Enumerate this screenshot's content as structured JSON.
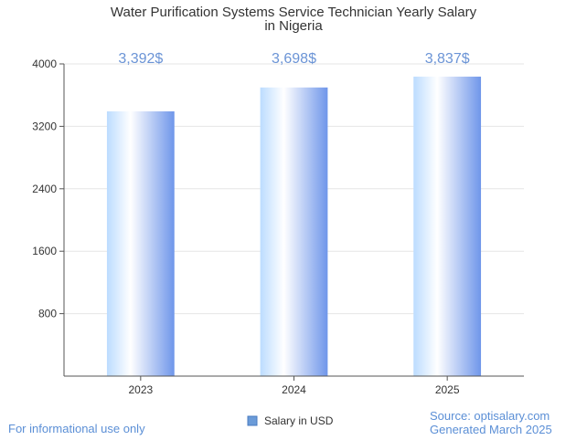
{
  "chart_data": {
    "type": "bar",
    "title": [
      "Water Purification Systems Service Technician Yearly Salary",
      "in Nigeria"
    ],
    "categories": [
      "2023",
      "2024",
      "2025"
    ],
    "series": [
      {
        "name": "Salary in USD",
        "values": [
          3392,
          3698,
          3837
        ],
        "value_labels": [
          "3,392$",
          "3,698$",
          "3,837$"
        ]
      }
    ],
    "yticks": [
      800,
      1600,
      2400,
      3200,
      4000
    ],
    "ytick_labels": [
      "800",
      "1600",
      "2400",
      "3200",
      "4000"
    ],
    "ylim": [
      0,
      4000
    ],
    "grid": true,
    "legend_position": "bottom-center",
    "colors": {
      "bar_light": "#ffffff",
      "bar_mid": "#bcdcff",
      "bar_dark": "#6f96ea",
      "value_label": "#6b94d6",
      "footer": "#5b8fd6",
      "axis": "#555555",
      "grid": "#e6e6e6",
      "legend_swatch": "#6b9bd8"
    }
  },
  "footer": {
    "left": "For informational use only",
    "source": "Source: optisalary.com",
    "generated": "Generated March 2025"
  }
}
